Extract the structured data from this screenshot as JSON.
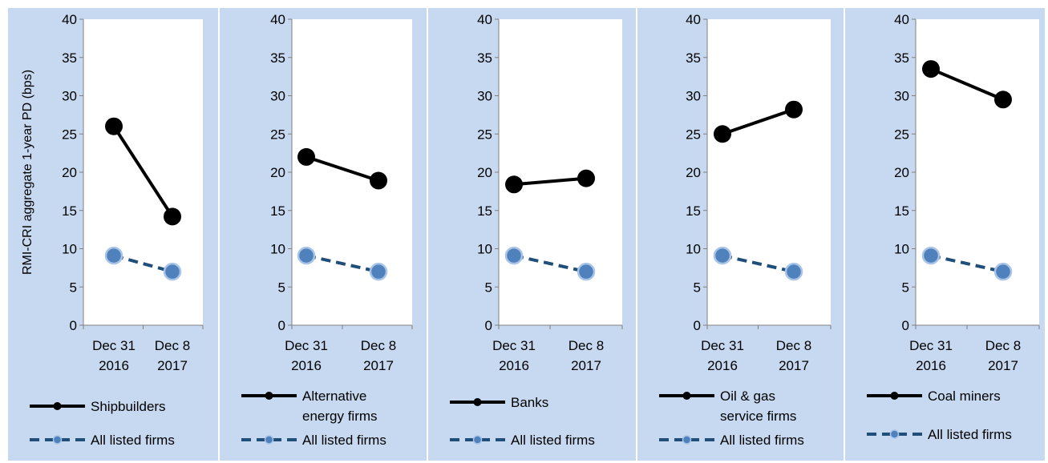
{
  "ylabel": "RMI-CRI aggregate  1-year PD (bps)",
  "colors": {
    "background": "#c6d9f1",
    "plot_area": "#ffffff",
    "sector_series": "#000000",
    "all_listed_series": "#1f4e79",
    "all_listed_marker": "#4f81bd"
  },
  "chart_data": [
    {
      "type": "line",
      "categories": [
        [
          "Dec 31",
          "2016"
        ],
        [
          "Dec 8",
          "2017"
        ]
      ],
      "ylim": [
        0,
        40
      ],
      "yticks": [
        0,
        5,
        10,
        15,
        20,
        25,
        30,
        35,
        40
      ],
      "grid": false,
      "legend_position": "bottom",
      "series": [
        {
          "name": "Shipbuilders",
          "values": [
            26.0,
            14.2
          ]
        },
        {
          "name": "All listed firms",
          "values": [
            9.1,
            7.0
          ]
        }
      ]
    },
    {
      "type": "line",
      "categories": [
        [
          "Dec 31",
          "2016"
        ],
        [
          "Dec 8",
          "2017"
        ]
      ],
      "ylim": [
        0,
        40
      ],
      "yticks": [
        0,
        5,
        10,
        15,
        20,
        25,
        30,
        35,
        40
      ],
      "grid": false,
      "legend_position": "bottom",
      "series": [
        {
          "name": "Alternative energy firms",
          "name_lines": [
            "Alternative",
            "energy firms"
          ],
          "values": [
            22.0,
            18.9
          ]
        },
        {
          "name": "All listed firms",
          "values": [
            9.1,
            7.0
          ]
        }
      ]
    },
    {
      "type": "line",
      "categories": [
        [
          "Dec 31",
          "2016"
        ],
        [
          "Dec 8",
          "2017"
        ]
      ],
      "ylim": [
        0,
        40
      ],
      "yticks": [
        0,
        5,
        10,
        15,
        20,
        25,
        30,
        35,
        40
      ],
      "grid": false,
      "legend_position": "bottom",
      "series": [
        {
          "name": "Banks",
          "values": [
            18.4,
            19.2
          ]
        },
        {
          "name": "All listed firms",
          "values": [
            9.1,
            7.0
          ]
        }
      ]
    },
    {
      "type": "line",
      "categories": [
        [
          "Dec 31",
          "2016"
        ],
        [
          "Dec 8",
          "2017"
        ]
      ],
      "ylim": [
        0,
        40
      ],
      "yticks": [
        0,
        5,
        10,
        15,
        20,
        25,
        30,
        35,
        40
      ],
      "grid": false,
      "legend_position": "bottom",
      "series": [
        {
          "name": "Oil & gas service firms",
          "name_lines": [
            "Oil & gas",
            "service firms"
          ],
          "values": [
            25.0,
            28.2
          ]
        },
        {
          "name": "All listed firms",
          "values": [
            9.1,
            7.0
          ]
        }
      ]
    },
    {
      "type": "line",
      "categories": [
        [
          "Dec 31",
          "2016"
        ],
        [
          "Dec 8",
          "2017"
        ]
      ],
      "ylim": [
        0,
        40
      ],
      "yticks": [
        0,
        5,
        10,
        15,
        20,
        25,
        30,
        35,
        40
      ],
      "grid": false,
      "legend_position": "bottom",
      "series": [
        {
          "name": "Coal miners",
          "values": [
            33.5,
            29.5
          ]
        },
        {
          "name": "All listed firms",
          "values": [
            9.1,
            7.0
          ]
        }
      ]
    }
  ]
}
